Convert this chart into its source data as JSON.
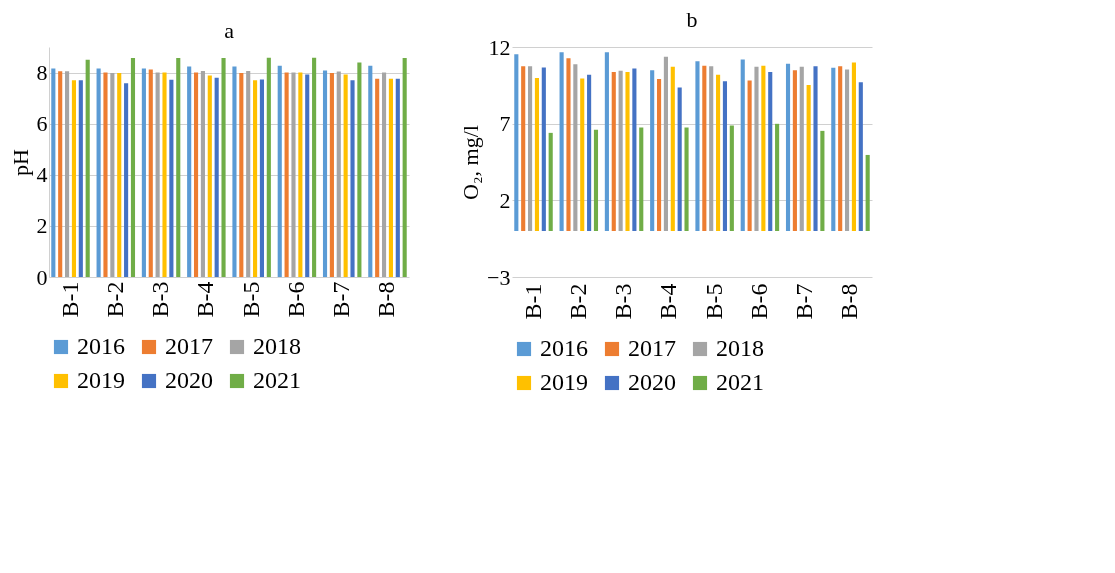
{
  "chart_data": [
    {
      "type": "bar",
      "title": "a",
      "ylabel": "pH",
      "categories": [
        "B-1",
        "B-2",
        "B-3",
        "B-4",
        "B-5",
        "B-6",
        "B-7",
        "B-8"
      ],
      "ylim": [
        0,
        9
      ],
      "yticks": [
        0,
        2,
        4,
        6,
        8
      ],
      "grid": "y",
      "legend": "bottom",
      "series": [
        {
          "name": "2016",
          "color": "#5b9bd5",
          "values": [
            8.16,
            8.16,
            8.16,
            8.24,
            8.24,
            8.27,
            8.08,
            8.27
          ]
        },
        {
          "name": "2017",
          "color": "#ed7d31",
          "values": [
            8.05,
            8.0,
            8.12,
            8.0,
            7.98,
            8.0,
            7.98,
            7.76
          ]
        },
        {
          "name": "2018",
          "color": "#a5a5a5",
          "values": [
            8.05,
            7.98,
            8.0,
            8.06,
            8.06,
            8.0,
            8.04,
            8.0
          ]
        },
        {
          "name": "2019",
          "color": "#ffc000",
          "values": [
            7.7,
            7.98,
            8.0,
            7.88,
            7.7,
            8.0,
            7.92,
            7.76
          ]
        },
        {
          "name": "2020",
          "color": "#4472c4",
          "values": [
            7.7,
            7.58,
            7.72,
            7.8,
            7.73,
            7.92,
            7.7,
            7.76
          ]
        },
        {
          "name": "2021",
          "color": "#70ad47",
          "values": [
            8.5,
            8.57,
            8.57,
            8.57,
            8.58,
            8.58,
            8.39,
            8.57
          ]
        }
      ]
    },
    {
      "type": "bar",
      "title": "b",
      "ylabel": "O₂, mg/l",
      "categories": [
        "B-1",
        "B-2",
        "B-3",
        "B-4",
        "B-5",
        "B-6",
        "B-7",
        "B-8"
      ],
      "ylim": [
        -3,
        12
      ],
      "yticks": [
        -3,
        2,
        7,
        12
      ],
      "grid": "y",
      "legend": "bottom",
      "series": [
        {
          "name": "2016",
          "color": "#5b9bd5",
          "values": [
            11.52,
            11.66,
            11.66,
            10.48,
            11.07,
            11.18,
            10.91,
            10.64
          ]
        },
        {
          "name": "2017",
          "color": "#ed7d31",
          "values": [
            10.75,
            11.26,
            10.37,
            9.92,
            10.77,
            9.82,
            10.48,
            10.75
          ]
        },
        {
          "name": "2018",
          "color": "#a5a5a5",
          "values": [
            10.75,
            10.88,
            10.45,
            11.36,
            10.75,
            10.72,
            10.72,
            10.53
          ]
        },
        {
          "name": "2019",
          "color": "#ffc000",
          "values": [
            9.98,
            9.95,
            10.37,
            10.72,
            10.19,
            10.77,
            9.52,
            10.99
          ]
        },
        {
          "name": "2020",
          "color": "#4472c4",
          "values": [
            10.66,
            10.19,
            10.6,
            9.36,
            9.76,
            10.37,
            10.75,
            9.7
          ]
        },
        {
          "name": "2021",
          "color": "#70ad47",
          "values": [
            6.4,
            6.6,
            6.75,
            6.75,
            6.88,
            6.99,
            6.53,
            4.96
          ]
        }
      ]
    }
  ]
}
